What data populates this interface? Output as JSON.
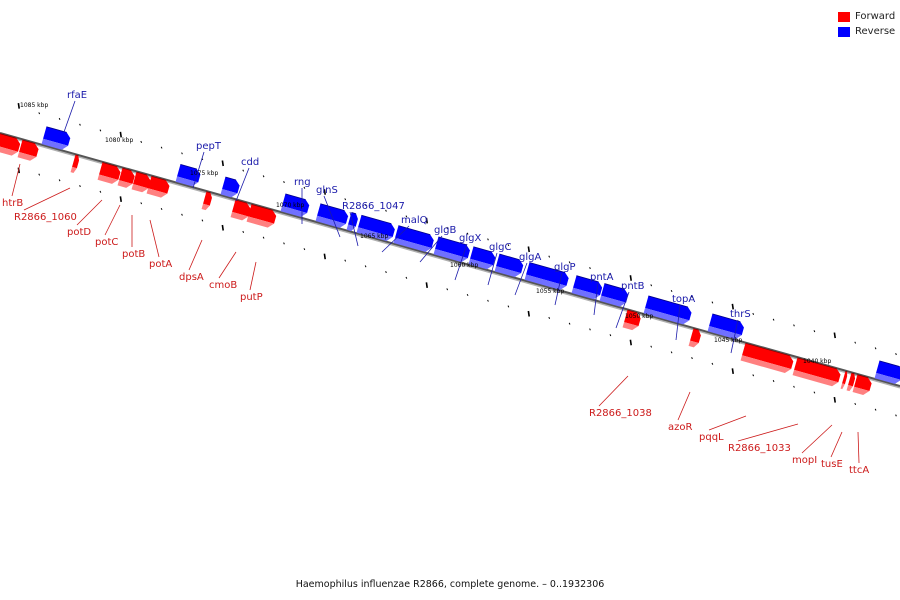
{
  "legend": {
    "forward": {
      "label": "Forward",
      "color": "#ff0000"
    },
    "reverse": {
      "label": "Reverse",
      "color": "#0000ff"
    }
  },
  "caption": "Haemophilus influenzae R2866, complete genome. – 0..1932306",
  "scale_labels": [
    "1085 kbp",
    "1080 kbp",
    "1075 kbp",
    "1070 kbp",
    "1065 kbp",
    "1060 kbp",
    "1055 kbp",
    "1050 kbp",
    "1045 kbp",
    "1040 kbp"
  ],
  "reverse_genes": [
    "rfaE",
    "pepT",
    "cdd",
    "rng",
    "glnS",
    "R2866_1047",
    "malQ",
    "glgB",
    "glgX",
    "glgC",
    "glgA",
    "glgP",
    "pntA",
    "pntB",
    "topA",
    "thrS"
  ],
  "forward_genes": [
    "htrB",
    "R2866_1060",
    "potD",
    "potC",
    "potB",
    "potA",
    "dpsA",
    "cmoB",
    "putP",
    "R2866_1038",
    "azoR",
    "pqqL",
    "R2866_1033",
    "mopI",
    "tusE",
    "ttcA"
  ]
}
